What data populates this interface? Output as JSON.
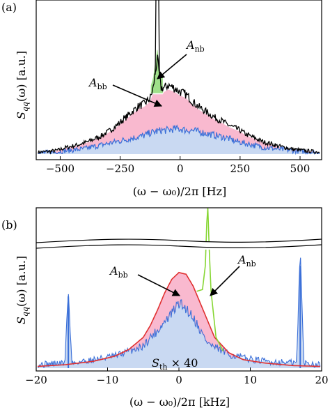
{
  "colors": {
    "black_trace": "#000000",
    "blue_trace": "#3a6fd8",
    "blue_fill": "#c9d9f2",
    "pink_fill": "#f9b9cf",
    "green_fill": "#9fe08a",
    "red_fit": "#e03030",
    "green_trace": "#86d633"
  },
  "chart_data": [
    {
      "panel": "(a)",
      "type": "line",
      "xlabel": "(ω − ω₀)/2π [Hz]",
      "ylabel": "S_qq(ω) [a.u.]",
      "xlim": [
        -600,
        590
      ],
      "xticks": [
        -500,
        -250,
        0,
        250,
        500
      ],
      "xtick_labels": [
        "−500",
        "−250",
        "0",
        "250",
        "500"
      ],
      "yticks_shown": false,
      "annotations": [
        {
          "text": "A",
          "sub": "nb"
        },
        {
          "text": "A",
          "sub": "bb"
        }
      ],
      "series": [
        {
          "label_role": "black",
          "x": [
            -580,
            -550,
            -520,
            -500,
            -475,
            -450,
            -425,
            -400,
            -375,
            -350,
            -325,
            -300,
            -275,
            -250,
            -225,
            -200,
            -175,
            -150,
            -125,
            -112,
            -105,
            -95,
            -80,
            -65,
            -50,
            -25,
            0,
            25,
            50,
            75,
            100,
            125,
            150,
            175,
            200,
            225,
            250,
            275,
            300,
            325,
            350,
            375,
            400,
            425,
            450,
            475,
            500,
            525,
            550,
            580
          ],
          "y": [
            0.015,
            0.02,
            0.025,
            0.035,
            0.05,
            0.06,
            0.07,
            0.085,
            0.1,
            0.12,
            0.14,
            0.17,
            0.2,
            0.24,
            0.28,
            0.32,
            0.36,
            0.38,
            0.42,
            0.5,
            0.6,
            0.72,
            0.5,
            0.5,
            0.52,
            0.5,
            0.47,
            0.45,
            0.4,
            0.36,
            0.33,
            0.3,
            0.27,
            0.25,
            0.22,
            0.2,
            0.18,
            0.15,
            0.13,
            0.11,
            0.09,
            0.08,
            0.065,
            0.055,
            0.045,
            0.035,
            0.03,
            0.025,
            0.02,
            0.015
          ]
        },
        {
          "label_role": "blue",
          "x": [
            -580,
            -550,
            -520,
            -500,
            -475,
            -450,
            -425,
            -400,
            -375,
            -350,
            -325,
            -300,
            -275,
            -250,
            -225,
            -200,
            -175,
            -150,
            -125,
            -100,
            -75,
            -50,
            -25,
            0,
            25,
            50,
            75,
            100,
            125,
            150,
            175,
            200,
            225,
            250,
            275,
            300,
            325,
            350,
            375,
            400,
            425,
            450,
            475,
            500,
            525,
            550,
            580
          ],
          "y": [
            0.01,
            0.012,
            0.015,
            0.02,
            0.025,
            0.03,
            0.035,
            0.04,
            0.05,
            0.06,
            0.07,
            0.08,
            0.09,
            0.1,
            0.11,
            0.12,
            0.13,
            0.14,
            0.16,
            0.17,
            0.18,
            0.18,
            0.19,
            0.19,
            0.18,
            0.18,
            0.17,
            0.16,
            0.15,
            0.14,
            0.13,
            0.12,
            0.1,
            0.09,
            0.08,
            0.07,
            0.06,
            0.05,
            0.045,
            0.04,
            0.035,
            0.03,
            0.025,
            0.02,
            0.018,
            0.015,
            0.012
          ]
        }
      ],
      "narrow_peak": {
        "x": -95,
        "height": "off-scale"
      }
    },
    {
      "panel": "(b)",
      "type": "line",
      "xlabel": "(ω − ω₀)/2π [kHz]",
      "ylabel": "S_qq(ω) [a.u.]",
      "xlim": [
        -20,
        20
      ],
      "xticks": [
        -20,
        -10,
        0,
        10,
        20
      ],
      "xtick_labels": [
        "−20",
        "−10",
        "0",
        "10",
        "20"
      ],
      "yticks_shown": false,
      "axis_break": true,
      "annotations": [
        {
          "text": "A",
          "sub": "bb"
        },
        {
          "text": "A",
          "sub": "nb"
        },
        {
          "text": "S",
          "sub": "th",
          "suffix": " × 40"
        }
      ],
      "series": [
        {
          "label_role": "red_fit",
          "x": [
            -20,
            -16,
            -12,
            -9,
            -7,
            -5,
            -4,
            -3,
            -2,
            -1,
            0,
            1,
            2,
            3,
            4,
            5,
            7,
            9,
            12,
            16,
            20
          ],
          "y": [
            0.01,
            0.02,
            0.04,
            0.07,
            0.11,
            0.18,
            0.25,
            0.34,
            0.44,
            0.52,
            0.56,
            0.55,
            0.48,
            0.38,
            0.28,
            0.18,
            0.09,
            0.05,
            0.03,
            0.015,
            0.01
          ]
        },
        {
          "label_role": "blue_thermal",
          "x": [
            -20,
            -16,
            -15.5,
            -15,
            -12,
            -9,
            -7,
            -5,
            -4,
            -3,
            -2,
            -1,
            0,
            1,
            2,
            3,
            4,
            5,
            7,
            9,
            12,
            16.5,
            17,
            17.5,
            20
          ],
          "y": [
            0.02,
            0.03,
            0.45,
            0.03,
            0.05,
            0.07,
            0.1,
            0.13,
            0.18,
            0.22,
            0.27,
            0.32,
            0.38,
            0.35,
            0.3,
            0.22,
            0.15,
            0.12,
            0.08,
            0.06,
            0.04,
            0.03,
            0.7,
            0.03,
            0.02
          ]
        },
        {
          "label_role": "green_peak",
          "x": [
            2.5,
            3,
            3.5,
            3.8,
            4,
            4.2,
            4.5,
            5,
            6
          ],
          "y": [
            0.4,
            0.42,
            0.5,
            0.9,
            1.15,
            0.9,
            0.45,
            0.2,
            0.1
          ]
        }
      ]
    }
  ],
  "labels": {
    "panel_a": "(a)",
    "panel_b": "(b)",
    "ylabel_main": "S",
    "ylabel_sub": "qq",
    "ylabel_rest": "(ω) [a.u.]",
    "xlabel_a": "(ω − ω₀)/2π [Hz]",
    "xlabel_b": "(ω − ω₀)/2π [kHz]",
    "ann_a_nb_main": "A",
    "ann_a_nb_sub": "nb",
    "ann_a_bb_main": "A",
    "ann_a_bb_sub": "bb",
    "ann_b_bb_main": "A",
    "ann_b_bb_sub": "bb",
    "ann_b_nb_main": "A",
    "ann_b_nb_sub": "nb",
    "ann_b_th_main": "S",
    "ann_b_th_sub": "th",
    "ann_b_th_suffix": " × 40"
  }
}
